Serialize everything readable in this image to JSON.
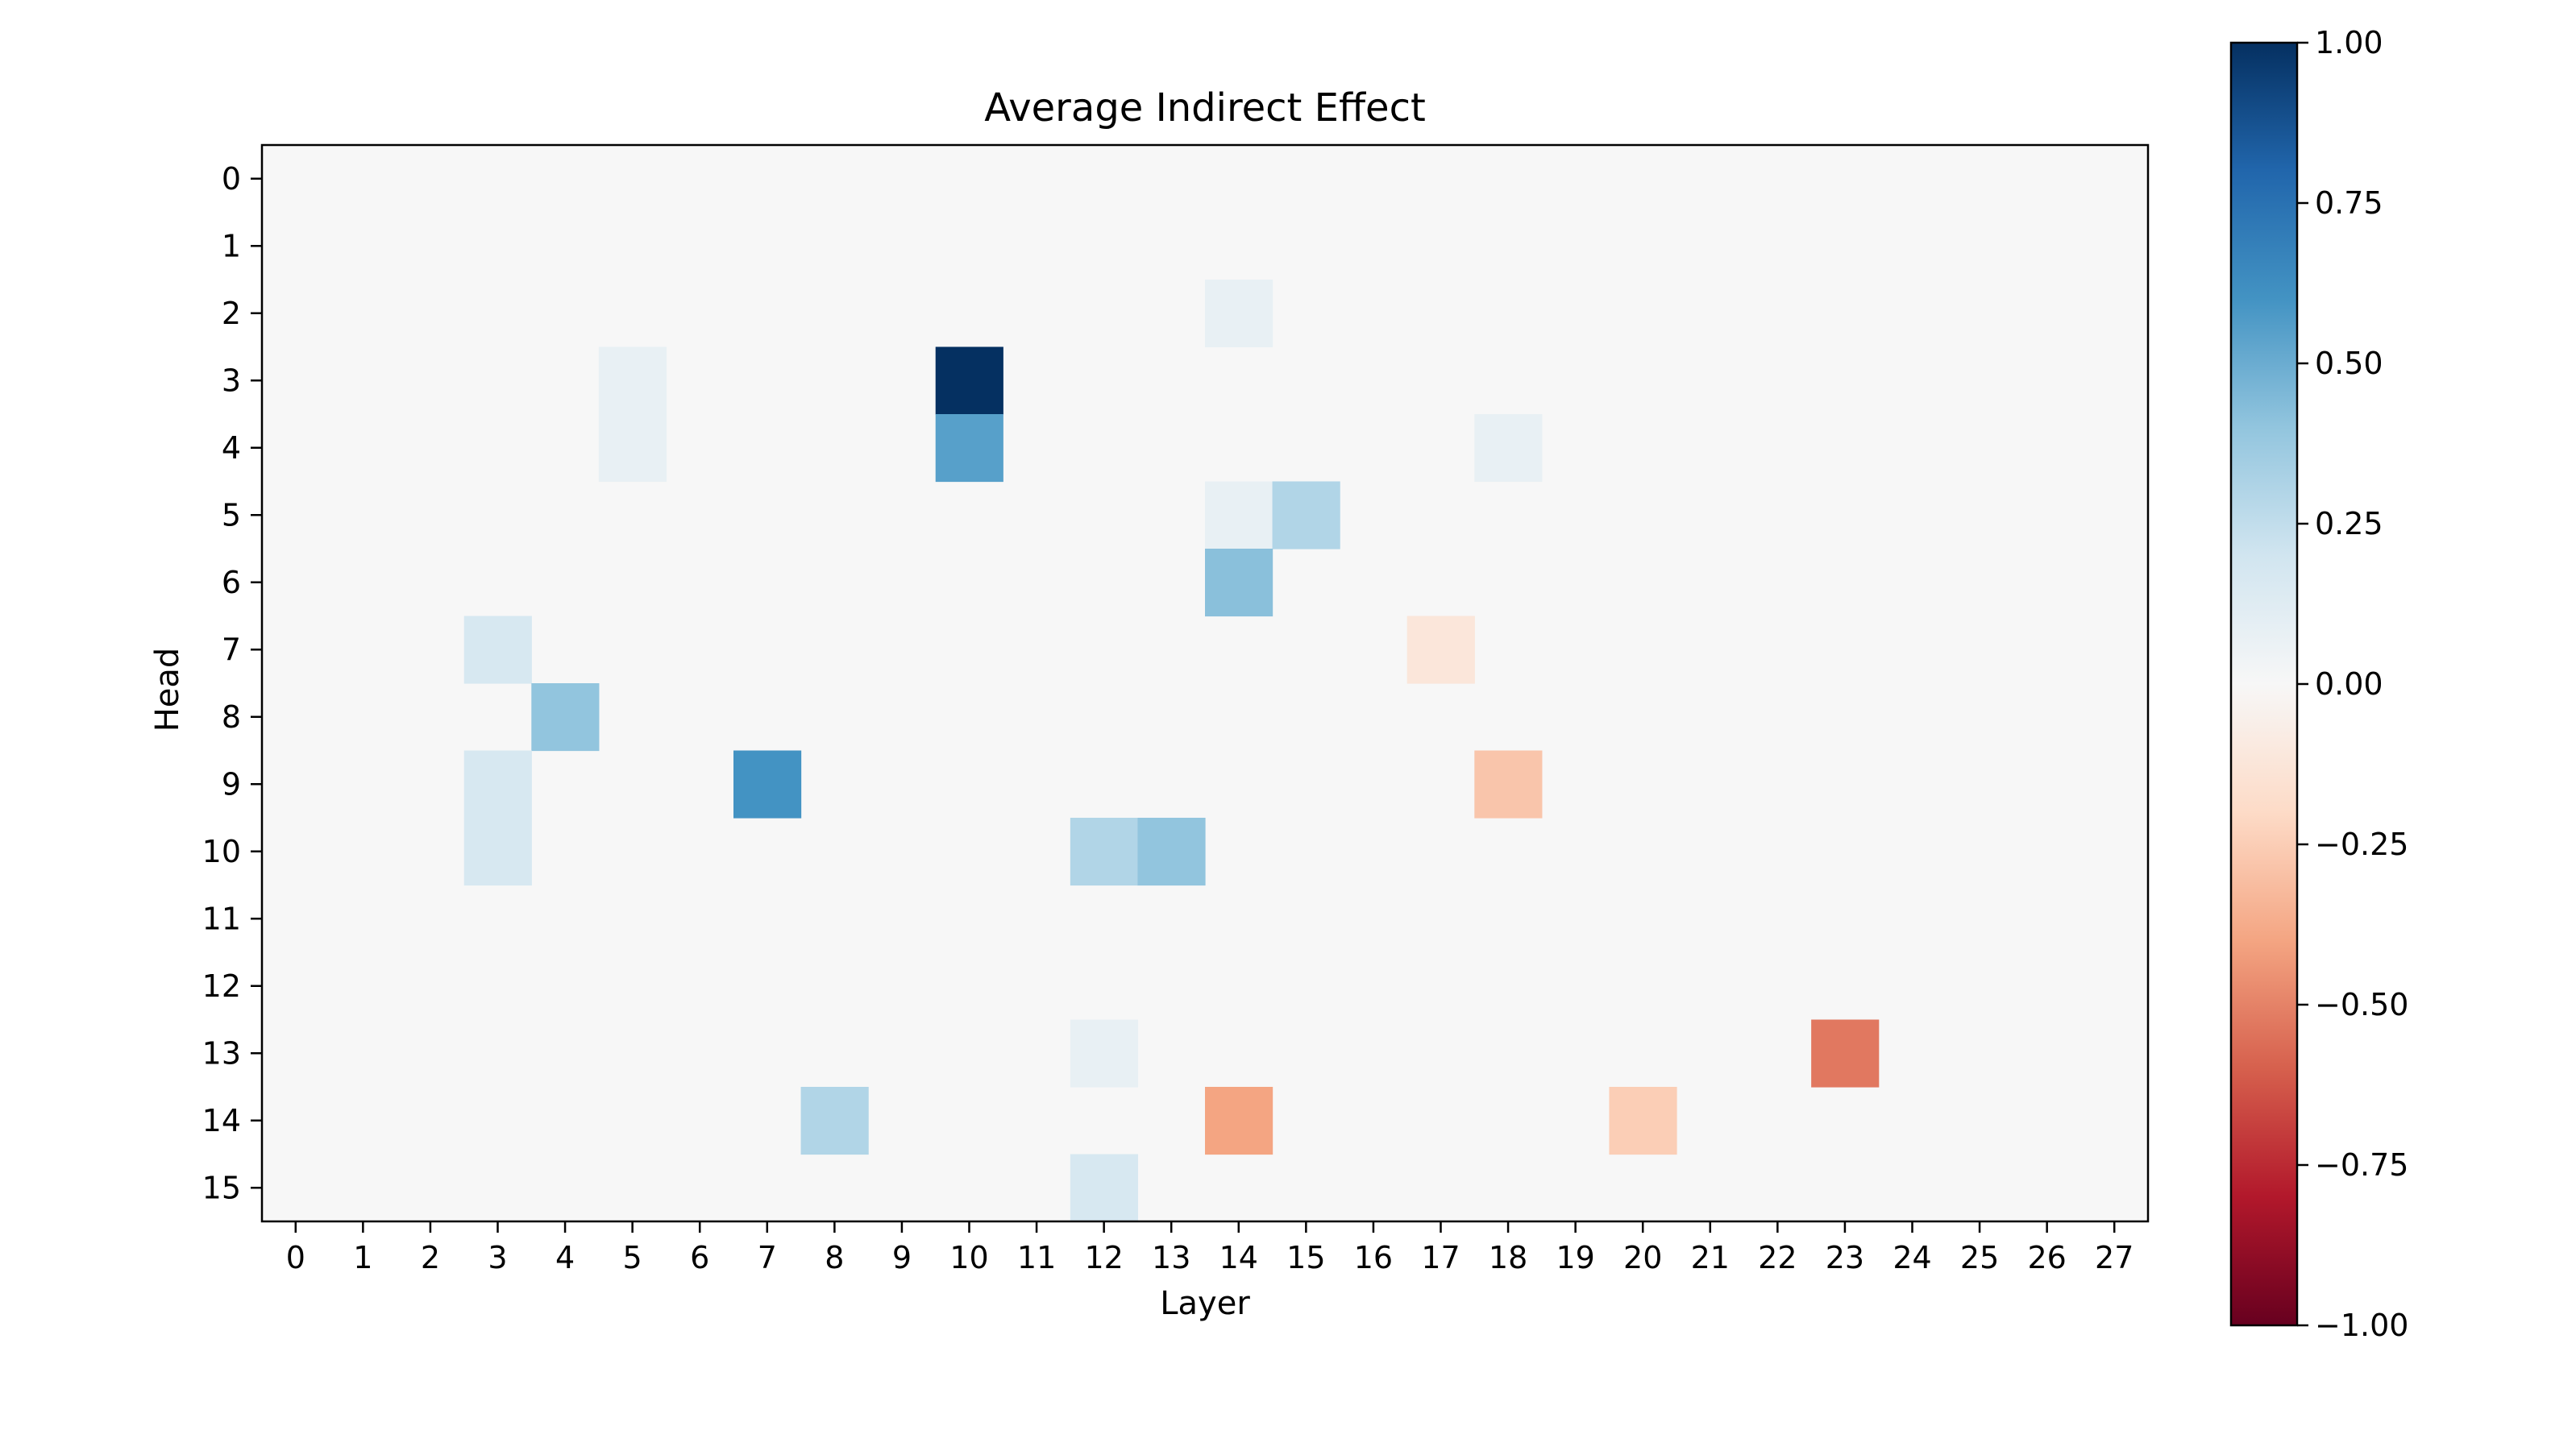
{
  "chart_data": {
    "type": "heatmap",
    "title": "Average Indirect Effect",
    "xlabel": "Layer",
    "ylabel": "Head",
    "x_ticks": [
      "0",
      "1",
      "2",
      "3",
      "4",
      "5",
      "6",
      "7",
      "8",
      "9",
      "10",
      "11",
      "12",
      "13",
      "14",
      "15",
      "16",
      "17",
      "18",
      "19",
      "20",
      "21",
      "22",
      "23",
      "24",
      "25",
      "26",
      "27"
    ],
    "y_ticks": [
      "0",
      "1",
      "2",
      "3",
      "4",
      "5",
      "6",
      "7",
      "8",
      "9",
      "10",
      "11",
      "12",
      "13",
      "14",
      "15"
    ],
    "colormap": "RdBu",
    "vmin": -1.0,
    "vmax": 1.0,
    "background_value": 0.0,
    "colorbar_ticks": [
      "1.00",
      "0.75",
      "0.50",
      "0.25",
      "0.00",
      "−0.25",
      "−0.50",
      "−0.75",
      "−1.00"
    ],
    "colorbar_values": [
      1.0,
      0.75,
      0.5,
      0.25,
      0.0,
      -0.25,
      -0.5,
      -0.75,
      -1.0
    ],
    "cells": [
      {
        "layer": 14,
        "head": 2,
        "value": 0.08
      },
      {
        "layer": 5,
        "head": 3,
        "value": 0.08
      },
      {
        "layer": 10,
        "head": 3,
        "value": 1.0
      },
      {
        "layer": 5,
        "head": 4,
        "value": 0.08
      },
      {
        "layer": 10,
        "head": 4,
        "value": 0.55
      },
      {
        "layer": 18,
        "head": 4,
        "value": 0.08
      },
      {
        "layer": 14,
        "head": 5,
        "value": 0.08
      },
      {
        "layer": 15,
        "head": 5,
        "value": 0.3
      },
      {
        "layer": 14,
        "head": 6,
        "value": 0.42
      },
      {
        "layer": 3,
        "head": 7,
        "value": 0.17
      },
      {
        "layer": 17,
        "head": 7,
        "value": -0.12
      },
      {
        "layer": 4,
        "head": 8,
        "value": 0.4
      },
      {
        "layer": 3,
        "head": 9,
        "value": 0.17
      },
      {
        "layer": 7,
        "head": 9,
        "value": 0.6
      },
      {
        "layer": 18,
        "head": 9,
        "value": -0.28
      },
      {
        "layer": 3,
        "head": 10,
        "value": 0.17
      },
      {
        "layer": 12,
        "head": 10,
        "value": 0.3
      },
      {
        "layer": 13,
        "head": 10,
        "value": 0.4
      },
      {
        "layer": 12,
        "head": 13,
        "value": 0.08
      },
      {
        "layer": 23,
        "head": 13,
        "value": -0.53
      },
      {
        "layer": 8,
        "head": 14,
        "value": 0.3
      },
      {
        "layer": 14,
        "head": 14,
        "value": -0.4
      },
      {
        "layer": 20,
        "head": 14,
        "value": -0.25
      },
      {
        "layer": 12,
        "head": 15,
        "value": 0.17
      }
    ]
  }
}
